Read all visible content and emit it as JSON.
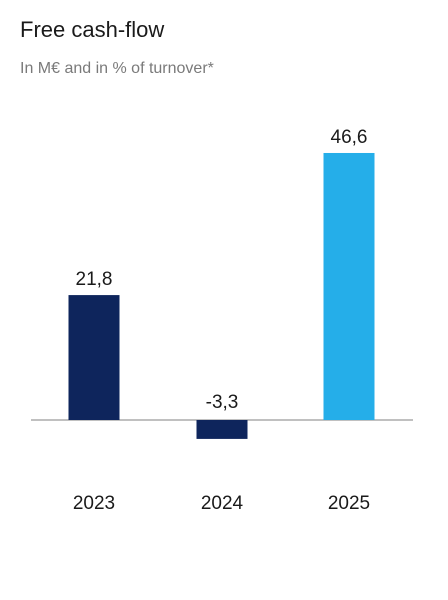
{
  "header": {
    "title": "Free cash-flow",
    "subtitle": "In M€ and in % of turnover*"
  },
  "colors": {
    "bar_dark": "#0e255c",
    "bar_light": "#25aee9",
    "axis": "#9a9a9a"
  },
  "chart_data": {
    "type": "bar",
    "title": "Free cash-flow",
    "subtitle": "In M€ and in % of turnover*",
    "categories": [
      "2023",
      "2024",
      "2025"
    ],
    "values": [
      21.8,
      -3.3,
      46.6
    ],
    "value_labels": [
      "21,8",
      "-3,3",
      "46,6"
    ],
    "bar_colors": [
      "#0e255c",
      "#0e255c",
      "#25aee9"
    ],
    "xlabel": "",
    "ylabel": "",
    "grid": false,
    "legend": "none"
  }
}
